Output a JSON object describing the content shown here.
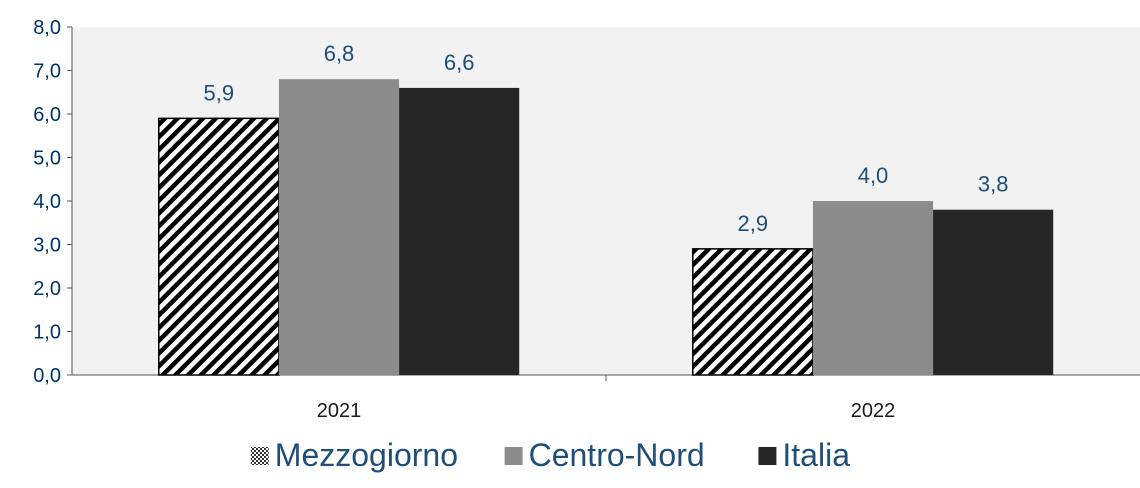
{
  "chart_data": {
    "type": "bar",
    "categories": [
      "2021",
      "2022"
    ],
    "series": [
      {
        "name": "Mezzogiorno",
        "values": [
          5.9,
          2.9
        ],
        "labels": [
          "5,9",
          "2,9"
        ],
        "color": "#ffffff",
        "pattern": "diagonal-hatch"
      },
      {
        "name": "Centro-Nord",
        "values": [
          6.8,
          4.0
        ],
        "labels": [
          "6,8",
          "4,0"
        ],
        "color": "#8c8c8c"
      },
      {
        "name": "Italia",
        "values": [
          6.6,
          3.8
        ],
        "labels": [
          "6,6",
          "3,8"
        ],
        "color": "#262626"
      }
    ],
    "ylim": [
      0,
      8
    ],
    "yticks": [
      "0,0",
      "1,0",
      "2,0",
      "3,0",
      "4,0",
      "5,0",
      "6,0",
      "7,0",
      "8,0"
    ],
    "title": "",
    "xlabel": "",
    "ylabel": "",
    "grid": false,
    "plot_background": "#f2f2f2",
    "legend_position": "bottom"
  }
}
